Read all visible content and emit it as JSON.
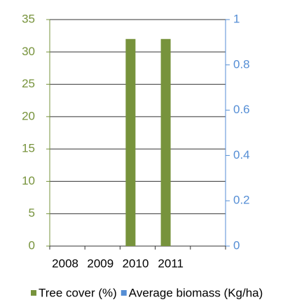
{
  "chart_data": {
    "type": "bar",
    "categories": [
      "2008",
      "2009",
      "2010",
      "2011",
      null
    ],
    "series": [
      {
        "name": "Tree cover (%)",
        "color": "#77933c",
        "values": [
          null,
          null,
          32,
          32,
          null
        ]
      },
      {
        "name": "Average biomass (Kg/ha)",
        "color": "#558ed5",
        "axis": "y2",
        "values": [
          null,
          null,
          null,
          null,
          null
        ]
      }
    ],
    "ylim": [
      0,
      35
    ],
    "yticks": [
      0,
      5,
      10,
      15,
      20,
      25,
      30,
      35
    ],
    "y2lim": [
      0,
      1
    ],
    "y2ticks": [
      0,
      0.2,
      0.4,
      0.6,
      0.8,
      1
    ],
    "grid": true,
    "legend": "bottom"
  }
}
